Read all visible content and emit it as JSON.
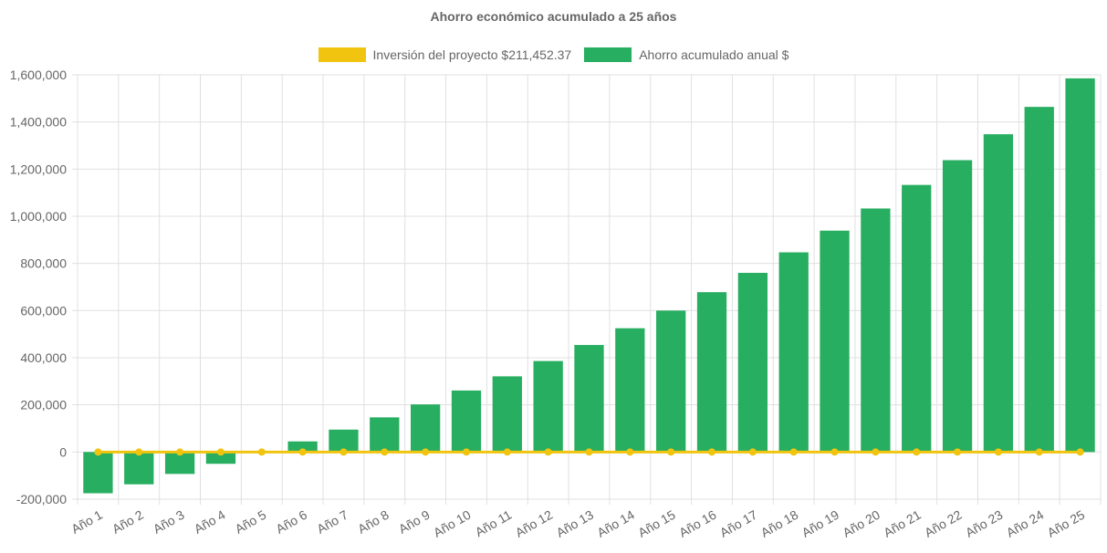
{
  "chart_data": {
    "type": "bar",
    "title": "Ahorro económico acumulado a 25 años",
    "categories": [
      "Año 1",
      "Año 2",
      "Año 3",
      "Año 4",
      "Año 5",
      "Año 6",
      "Año 7",
      "Año 8",
      "Año 9",
      "Año 10",
      "Año 11",
      "Año 12",
      "Año 13",
      "Año 14",
      "Año 15",
      "Año 16",
      "Año 17",
      "Año 18",
      "Año 19",
      "Año 20",
      "Año 21",
      "Año 22",
      "Año 23",
      "Año 24",
      "Año 25"
    ],
    "series": [
      {
        "name": "Inversión del proyecto $211,452.37",
        "type": "line",
        "color": "#f1c40f",
        "values": [
          0,
          0,
          0,
          0,
          0,
          0,
          0,
          0,
          0,
          0,
          0,
          0,
          0,
          0,
          0,
          0,
          0,
          0,
          0,
          0,
          0,
          0,
          0,
          0,
          0
        ]
      },
      {
        "name": "Ahorro acumulado anual $",
        "type": "bar",
        "color": "#27ae60",
        "values": [
          -175000,
          -137000,
          -93000,
          -50000,
          0,
          45000,
          95000,
          147000,
          202000,
          261000,
          321000,
          386000,
          454000,
          525000,
          600000,
          678000,
          760000,
          847000,
          939000,
          1033000,
          1133000,
          1238000,
          1348000,
          1464000,
          1585000
        ]
      }
    ],
    "ylim": [
      -200000,
      1600000
    ],
    "yticks": [
      -200000,
      0,
      200000,
      400000,
      600000,
      800000,
      1000000,
      1200000,
      1400000,
      1600000
    ],
    "ytick_labels": [
      "-200,000",
      "0",
      "200,000",
      "400,000",
      "600,000",
      "800,000",
      "1,000,000",
      "1,200,000",
      "1,400,000",
      "1,600,000"
    ],
    "grid": true,
    "legend_position": "top"
  },
  "legend": {
    "line_label": "Inversión del proyecto $211,452.37",
    "bar_label": "Ahorro acumulado anual $"
  },
  "colors": {
    "line": "#f1c40f",
    "bar": "#27ae60",
    "grid": "#e0e0e0",
    "text": "#666666"
  }
}
